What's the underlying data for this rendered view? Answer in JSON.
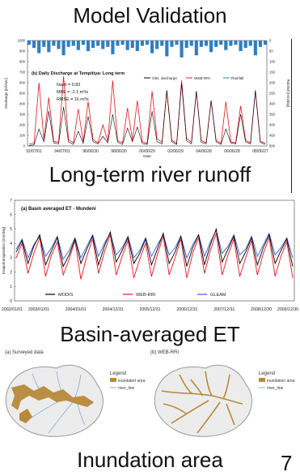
{
  "slide": {
    "title": "Model Validation",
    "caption_runoff": "Long-term river runoff",
    "caption_et": "Basin-averaged ET",
    "caption_inundation": "Inundation area",
    "page_number": "7"
  },
  "chart_data": [
    {
      "type": "line",
      "title": "(b) Daily Discharge at Tempitiya: Long term",
      "ylabel": "Discharge [m³/sec]",
      "y2label": "Rainfall [mm/day]",
      "xlabel": "Date",
      "ylim": [
        0,
        1000
      ],
      "yticks": [
        0,
        100,
        200,
        300,
        400,
        500,
        600,
        700,
        800,
        900,
        1000
      ],
      "y2lim": [
        0,
        500
      ],
      "y2ticks": [
        0,
        50,
        100,
        150,
        200,
        250,
        300,
        350,
        400,
        450,
        500
      ],
      "y2_inverted": true,
      "x_tick_labels": [
        "92/07/01",
        "94/07/01",
        "96/06/30",
        "98/06/30",
        "00/06/29",
        "02/06/29",
        "04/06/28",
        "06/06/28",
        "08/06/27"
      ],
      "stats": [
        "Nash = 0.83",
        "MBE = -2.1 m³/s",
        "RMSE = 16 m³/s"
      ],
      "legend": [
        "Obs. discharge",
        "WEB-RRI",
        "Rainfall"
      ],
      "legend_position": "top-right",
      "colors": {
        "obs": "#000000",
        "sim": "#e8141e",
        "rain": "#2f7fc1"
      },
      "series": [
        {
          "name": "Obs. discharge",
          "values": [
            5,
            10,
            160,
            40,
            330,
            30,
            20,
            370,
            40,
            15,
            140,
            25,
            280,
            40,
            20,
            90,
            30,
            300,
            35,
            15,
            170,
            40,
            180,
            25,
            15,
            330,
            40,
            20,
            520,
            40,
            15,
            590,
            50,
            20,
            520,
            35,
            20,
            430,
            40,
            15,
            160,
            30,
            20,
            300,
            40,
            20,
            520,
            35,
            15
          ]
        },
        {
          "name": "WEB-RRI",
          "values": [
            20,
            25,
            600,
            60,
            460,
            45,
            35,
            660,
            60,
            30,
            350,
            40,
            420,
            60,
            30,
            200,
            45,
            620,
            50,
            30,
            360,
            55,
            430,
            40,
            25,
            520,
            70,
            35,
            530,
            55,
            25,
            620,
            70,
            35,
            520,
            50,
            30,
            430,
            55,
            25,
            420,
            40,
            30,
            380,
            55,
            30,
            530,
            45,
            25
          ]
        },
        {
          "name": "Rainfall",
          "values": [
            20,
            35,
            60,
            30,
            55,
            25,
            40,
            70,
            30,
            25,
            45,
            20,
            50,
            35,
            25,
            40,
            30,
            65,
            25,
            20,
            45,
            35,
            50,
            25,
            20,
            60,
            40,
            25,
            75,
            30,
            20,
            80,
            35,
            25,
            70,
            30,
            25,
            55,
            30,
            20,
            45,
            25,
            20,
            50,
            35,
            25,
            70,
            30,
            20
          ]
        }
      ]
    },
    {
      "type": "line",
      "title": "(a) Basin averaged ET - Mundeni",
      "ylabel": "Evapotranspiration [mm/day]",
      "ylim": [
        0,
        7
      ],
      "yticks": [
        0,
        1,
        2,
        3,
        4,
        5,
        6,
        7
      ],
      "x_tick_labels": [
        "2002/01/01",
        "2003/01/01",
        "2004/01/01",
        "2004/12/31",
        "2005/12/31",
        "2006/12/31",
        "2007/12/31",
        "2008/12/30",
        "2009/12/30"
      ],
      "legend": [
        "MODIS",
        "WEB-RRI",
        "GLEAM"
      ],
      "legend_position": "bottom-center",
      "colors": {
        "modis": "#000000",
        "webrri": "#e8141e",
        "gleam": "#3b5bdb"
      },
      "series": [
        {
          "name": "MODIS",
          "values": [
            3.4,
            4.2,
            2.6,
            3.8,
            4.6,
            2.5,
            3.5,
            4.4,
            2.4,
            3.2,
            4.3,
            2.6,
            3.6,
            4.5,
            2.5,
            3.8,
            4.8,
            2.7,
            3.5,
            4.4,
            2.6,
            3.3,
            4.3,
            2.5,
            3.6,
            4.7,
            2.6,
            3.4,
            4.5,
            2.4,
            3.7,
            4.6,
            2.5,
            3.9,
            5.0,
            2.7,
            3.6,
            4.5,
            2.6,
            3.4,
            4.4,
            2.5,
            3.7,
            4.6,
            2.6,
            3.5,
            4.3,
            2.4
          ]
        },
        {
          "name": "WEB-RRI",
          "values": [
            3.0,
            4.0,
            1.9,
            3.3,
            4.4,
            1.7,
            3.2,
            4.1,
            1.8,
            2.9,
            4.2,
            1.5,
            3.1,
            4.3,
            1.9,
            3.4,
            4.6,
            1.8,
            3.1,
            4.2,
            1.6,
            2.9,
            4.0,
            1.7,
            3.2,
            4.5,
            1.8,
            3.0,
            4.3,
            1.6,
            3.3,
            4.4,
            1.9,
            3.5,
            4.7,
            1.8,
            3.2,
            4.3,
            1.7,
            3.0,
            4.2,
            1.8,
            3.3,
            4.4,
            1.7,
            3.1,
            4.1,
            1.6
          ]
        },
        {
          "name": "GLEAM",
          "values": [
            3.6,
            4.3,
            3.0,
            3.9,
            4.5,
            3.1,
            3.7,
            4.5,
            2.9,
            3.5,
            4.4,
            3.0,
            3.8,
            4.6,
            3.1,
            4.0,
            4.7,
            3.2,
            3.7,
            4.5,
            3.0,
            3.5,
            4.4,
            3.1,
            3.9,
            4.6,
            3.2,
            3.7,
            4.5,
            3.0,
            3.9,
            4.6,
            3.1,
            4.1,
            4.9,
            3.3,
            3.8,
            4.6,
            3.2,
            3.6,
            4.5,
            3.1,
            3.9,
            4.7,
            3.2,
            3.7,
            4.4,
            3.0
          ]
        }
      ]
    }
  ],
  "inundation": {
    "left_title": "(a) Surveyed data",
    "right_title": "(b) WEB-RRI",
    "left_legend": {
      "title": "Legend",
      "items": [
        "inundated area",
        "river_line"
      ]
    },
    "right_legend": {
      "title": "Legend",
      "items": [
        "inundation area",
        "river_line"
      ]
    },
    "colors": {
      "inundation": "#b8893a",
      "river": "#7fb0d8",
      "basin": "#e9e9e9",
      "outline": "#9a9a9a"
    }
  }
}
